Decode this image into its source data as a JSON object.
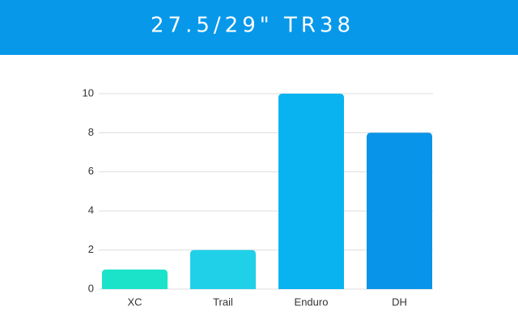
{
  "chart_data": {
    "type": "bar",
    "title": "27.5/29\" TR38",
    "categories": [
      "XC",
      "Trail",
      "Enduro",
      "DH"
    ],
    "values": [
      1,
      2,
      10,
      8
    ],
    "colors": [
      "#1ae3c9",
      "#1fd0e8",
      "#09b3f0",
      "#0894e8"
    ],
    "ylim": [
      0,
      10
    ],
    "yticks": [
      0,
      2,
      4,
      6,
      8,
      10
    ],
    "grid": true
  }
}
